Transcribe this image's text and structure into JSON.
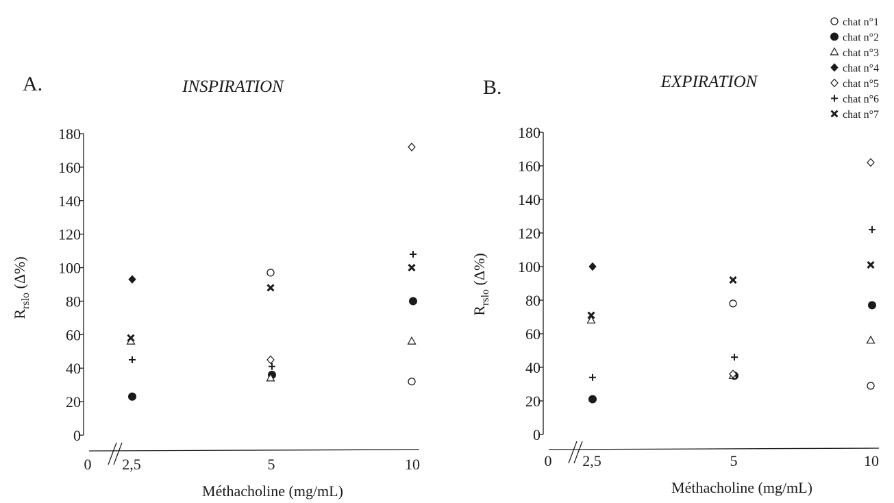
{
  "legend": {
    "entries": [
      {
        "label": "chat n°1",
        "marker": "open-circle"
      },
      {
        "label": "chat n°2",
        "marker": "filled-circle"
      },
      {
        "label": "chat n°3",
        "marker": "open-triangle"
      },
      {
        "label": "chat n°4",
        "marker": "filled-diamond"
      },
      {
        "label": "chat n°5",
        "marker": "open-diamond"
      },
      {
        "label": "chat n°6",
        "marker": "plus"
      },
      {
        "label": "chat n°7",
        "marker": "cross"
      }
    ]
  },
  "chart_data": [
    {
      "type": "scatter",
      "panel_label": "A.",
      "title": "INSPIRATION",
      "xlabel": "Méthacholine (mg/mL)",
      "ylabel": "Rrslo (Δ%)",
      "ylabel_main": "R",
      "ylabel_sub": "rslo",
      "ylabel_rest": " (Δ%)",
      "x_ticks": [
        "0",
        "2,5",
        "5",
        "10"
      ],
      "x_categories": [
        2.5,
        5,
        10
      ],
      "ylim": [
        0,
        180
      ],
      "y_ticks": [
        0,
        20,
        40,
        60,
        80,
        100,
        120,
        140,
        160,
        180
      ],
      "axis_break": true,
      "grid": false,
      "series": [
        {
          "name": "chat n°1",
          "marker": "open-circle",
          "values": [
            null,
            97,
            32
          ]
        },
        {
          "name": "chat n°2",
          "marker": "filled-circle",
          "values": [
            23,
            36,
            80
          ]
        },
        {
          "name": "chat n°3",
          "marker": "open-triangle",
          "values": [
            56,
            34,
            56
          ]
        },
        {
          "name": "chat n°4",
          "marker": "filled-diamond",
          "values": [
            93,
            null,
            null
          ]
        },
        {
          "name": "chat n°5",
          "marker": "open-diamond",
          "values": [
            null,
            45,
            172
          ]
        },
        {
          "name": "chat n°6",
          "marker": "plus",
          "values": [
            45,
            41,
            108
          ]
        },
        {
          "name": "chat n°7",
          "marker": "cross",
          "values": [
            58,
            88,
            100
          ]
        }
      ]
    },
    {
      "type": "scatter",
      "panel_label": "B.",
      "title": "EXPIRATION",
      "xlabel": "Méthacholine (mg/mL)",
      "ylabel": "Rrslo (Δ%)",
      "ylabel_main": "R",
      "ylabel_sub": "rslo",
      "ylabel_rest": " (Δ%)",
      "x_ticks": [
        "0",
        "2,5",
        "5",
        "10"
      ],
      "x_categories": [
        2.5,
        5,
        10
      ],
      "ylim": [
        0,
        180
      ],
      "y_ticks": [
        0,
        20,
        40,
        60,
        80,
        100,
        120,
        140,
        160,
        180
      ],
      "axis_break": true,
      "grid": false,
      "series": [
        {
          "name": "chat n°1",
          "marker": "open-circle",
          "values": [
            null,
            78,
            29
          ]
        },
        {
          "name": "chat n°2",
          "marker": "filled-circle",
          "values": [
            21,
            35,
            77
          ]
        },
        {
          "name": "chat n°3",
          "marker": "open-triangle",
          "values": [
            68,
            35,
            56
          ]
        },
        {
          "name": "chat n°4",
          "marker": "filled-diamond",
          "values": [
            100,
            null,
            null
          ]
        },
        {
          "name": "chat n°5",
          "marker": "open-diamond",
          "values": [
            null,
            36,
            162
          ]
        },
        {
          "name": "chat n°6",
          "marker": "plus",
          "values": [
            34,
            46,
            122
          ]
        },
        {
          "name": "chat n°7",
          "marker": "cross",
          "values": [
            71,
            92,
            101
          ]
        }
      ]
    }
  ]
}
